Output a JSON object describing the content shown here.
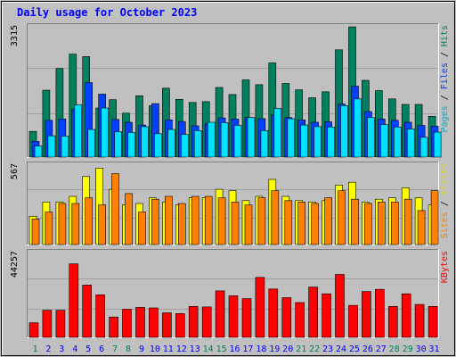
{
  "chart_data": {
    "title": "Daily usage for October 2023",
    "type": "bar",
    "colors": {
      "background": "#c0c0c0",
      "title": "#0000ff",
      "hits": "#00805c",
      "files": "#0040ff",
      "pages": "#00e0ff",
      "visits": "#ffff00",
      "sites": "#ff8000",
      "kbytes": "#ff0000",
      "weekend_day_label": "#00805c",
      "weekday_label": "#0000ff"
    },
    "days": [
      "1",
      "2",
      "3",
      "4",
      "5",
      "6",
      "7",
      "8",
      "9",
      "10",
      "11",
      "12",
      "13",
      "14",
      "15",
      "16",
      "17",
      "18",
      "19",
      "20",
      "21",
      "22",
      "23",
      "24",
      "25",
      "26",
      "27",
      "28",
      "29",
      "30",
      "31"
    ],
    "weekend_days": [
      "1",
      "7",
      "8",
      "14",
      "15",
      "21",
      "22",
      "28",
      "29"
    ],
    "panels": [
      {
        "name": "Hits / Files / Pages",
        "max_label": "3315",
        "ymax": 3315,
        "legend": [
          {
            "text": "Pages",
            "color": "#00b0d0"
          },
          {
            "text": " / ",
            "color": "#000000"
          },
          {
            "text": "Files",
            "color": "#0040ff"
          },
          {
            "text": " / ",
            "color": "#000000"
          },
          {
            "text": "Hits",
            "color": "#00805c"
          }
        ],
        "series": [
          {
            "name": "Hits",
            "color": "#00805c",
            "values": [
              650,
              1690,
              2240,
              2600,
              2540,
              1240,
              1450,
              1110,
              1550,
              1300,
              1740,
              1460,
              1380,
              1400,
              1760,
              1580,
              1950,
              1830,
              2380,
              1860,
              1700,
              1500,
              1650,
              2710,
              3290,
              1940,
              1680,
              1470,
              1330,
              1330,
              1030
            ]
          },
          {
            "name": "Files",
            "color": "#0040ff",
            "values": [
              400,
              930,
              960,
              1210,
              1880,
              1590,
              950,
              880,
              810,
              1350,
              940,
              900,
              790,
              850,
              990,
              960,
              1000,
              970,
              1070,
              1000,
              940,
              880,
              890,
              1340,
              1790,
              1150,
              960,
              930,
              880,
              800,
              780
            ]
          },
          {
            "name": "Pages",
            "color": "#00e0ff",
            "values": [
              280,
              540,
              530,
              1320,
              700,
              1240,
              640,
              620,
              770,
              590,
              700,
              570,
              670,
              880,
              870,
              800,
              1000,
              670,
              1230,
              970,
              810,
              770,
              760,
              1300,
              1470,
              1000,
              820,
              760,
              710,
              500,
              630
            ]
          }
        ]
      },
      {
        "name": "Visits / Sites",
        "max_label": "567",
        "ymax": 567,
        "legend": [
          {
            "text": "Sites",
            "color": "#ff8000"
          },
          {
            "text": " / ",
            "color": "#000000"
          },
          {
            "text": "Visits",
            "color": "#e0e000"
          }
        ],
        "series": [
          {
            "name": "Visits",
            "color": "#ffff00",
            "values": [
              200,
              300,
              300,
              340,
              480,
              540,
              390,
              280,
              290,
              330,
              300,
              280,
              330,
              330,
              390,
              380,
              310,
              340,
              460,
              340,
              310,
              300,
              310,
              420,
              440,
              300,
              320,
              330,
              400,
              330,
              280
            ]
          },
          {
            "name": "Sites",
            "color": "#ff8000",
            "values": [
              180,
              230,
              290,
              290,
              330,
              280,
              500,
              360,
              230,
              320,
              340,
              290,
              340,
              340,
              330,
              300,
              280,
              330,
              380,
              310,
              300,
              290,
              330,
              380,
              320,
              290,
              300,
              300,
              320,
              240,
              380
            ]
          }
        ]
      },
      {
        "name": "KBytes",
        "max_label": "44257",
        "ymax": 44257,
        "legend": [
          {
            "text": "KBytes",
            "color": "#ff0000"
          }
        ],
        "series": [
          {
            "name": "KBytes",
            "color": "#ff0000",
            "values": [
              7500,
              14000,
              14000,
              38000,
              27000,
              22000,
              10500,
              14500,
              15500,
              15200,
              12700,
              12300,
              16000,
              15700,
              24000,
              21500,
              20000,
              31000,
              25000,
              20500,
              18000,
              26000,
              22500,
              32500,
              16500,
              23700,
              24800,
              16000,
              22500,
              17000,
              16000
            ]
          }
        ]
      }
    ]
  }
}
